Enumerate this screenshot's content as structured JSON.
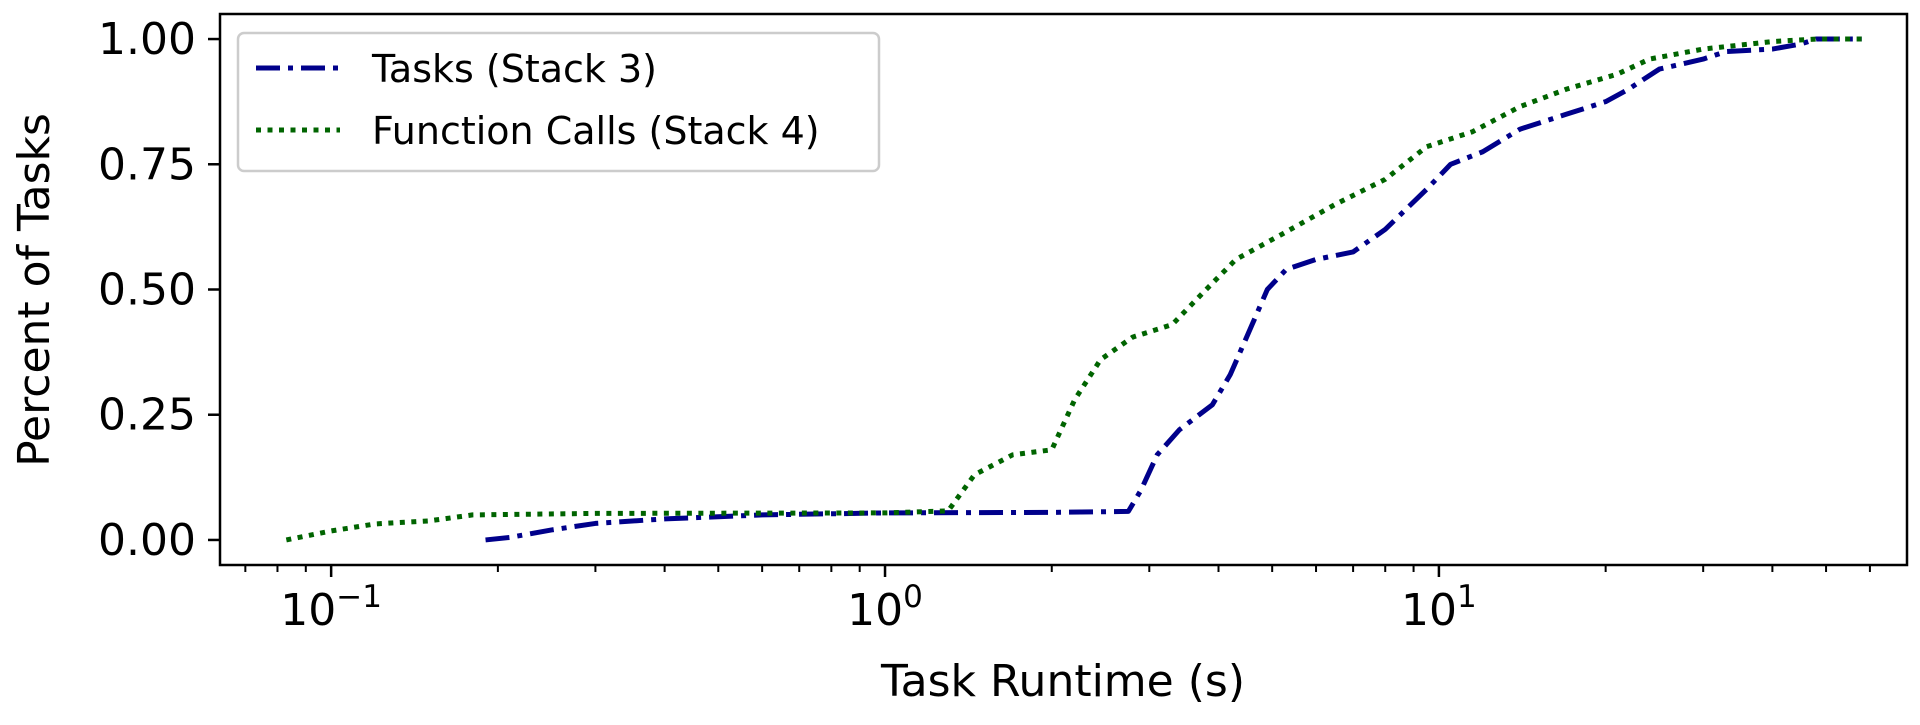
{
  "chart_data": {
    "type": "line",
    "title": "",
    "xlabel": "Task Runtime (s)",
    "ylabel": "Percent of Tasks",
    "xscale": "log",
    "xlim": [
      0.063,
      70
    ],
    "ylim": [
      -0.05,
      1.05
    ],
    "grid": false,
    "legend_position": "top-left",
    "x_ticks": [
      {
        "value": 0.1,
        "base": "10",
        "exp": "−1"
      },
      {
        "value": 1,
        "base": "10",
        "exp": "0"
      },
      {
        "value": 10,
        "base": "10",
        "exp": "1"
      }
    ],
    "y_ticks": [
      {
        "value": 0,
        "label": "0.00"
      },
      {
        "value": 0.25,
        "label": "0.25"
      },
      {
        "value": 0.5,
        "label": "0.50"
      },
      {
        "value": 0.75,
        "label": "0.75"
      },
      {
        "value": 1,
        "label": "1.00"
      }
    ],
    "series": [
      {
        "name": "Tasks (Stack 3)",
        "color": "#00008b",
        "style": "dashdot",
        "points": [
          [
            0.19,
            0.0
          ],
          [
            0.21,
            0.005
          ],
          [
            0.25,
            0.02
          ],
          [
            0.3,
            0.033
          ],
          [
            0.4,
            0.042
          ],
          [
            0.6,
            0.05
          ],
          [
            1.0,
            0.054
          ],
          [
            2.0,
            0.055
          ],
          [
            2.75,
            0.057
          ],
          [
            2.9,
            0.1
          ],
          [
            3.1,
            0.17
          ],
          [
            3.4,
            0.22
          ],
          [
            3.9,
            0.27
          ],
          [
            4.2,
            0.33
          ],
          [
            4.6,
            0.43
          ],
          [
            4.9,
            0.5
          ],
          [
            5.3,
            0.54
          ],
          [
            6.0,
            0.56
          ],
          [
            7.0,
            0.575
          ],
          [
            8.0,
            0.62
          ],
          [
            9.5,
            0.7
          ],
          [
            10.5,
            0.75
          ],
          [
            12.0,
            0.775
          ],
          [
            14.0,
            0.82
          ],
          [
            17.0,
            0.85
          ],
          [
            20.0,
            0.875
          ],
          [
            22.0,
            0.9
          ],
          [
            25.0,
            0.94
          ],
          [
            30.0,
            0.96
          ],
          [
            33.0,
            0.975
          ],
          [
            40.0,
            0.98
          ],
          [
            45.0,
            0.99
          ],
          [
            48.0,
            1.0
          ],
          [
            58.0,
            1.0
          ]
        ]
      },
      {
        "name": "Function Calls (Stack 4)",
        "color": "#006400",
        "style": "dotted",
        "points": [
          [
            0.083,
            0.0
          ],
          [
            0.1,
            0.018
          ],
          [
            0.12,
            0.032
          ],
          [
            0.15,
            0.038
          ],
          [
            0.18,
            0.05
          ],
          [
            0.3,
            0.053
          ],
          [
            1.0,
            0.054
          ],
          [
            1.3,
            0.058
          ],
          [
            1.45,
            0.13
          ],
          [
            1.7,
            0.17
          ],
          [
            2.0,
            0.18
          ],
          [
            2.2,
            0.28
          ],
          [
            2.45,
            0.36
          ],
          [
            2.8,
            0.405
          ],
          [
            3.3,
            0.43
          ],
          [
            3.8,
            0.5
          ],
          [
            4.3,
            0.56
          ],
          [
            5.2,
            0.61
          ],
          [
            6.5,
            0.67
          ],
          [
            8.0,
            0.72
          ],
          [
            9.5,
            0.785
          ],
          [
            11.5,
            0.815
          ],
          [
            14.0,
            0.865
          ],
          [
            17.0,
            0.9
          ],
          [
            21.0,
            0.93
          ],
          [
            24.0,
            0.96
          ],
          [
            30.0,
            0.98
          ],
          [
            40.0,
            0.995
          ],
          [
            48.0,
            1.0
          ],
          [
            58.0,
            1.0
          ]
        ]
      }
    ]
  }
}
